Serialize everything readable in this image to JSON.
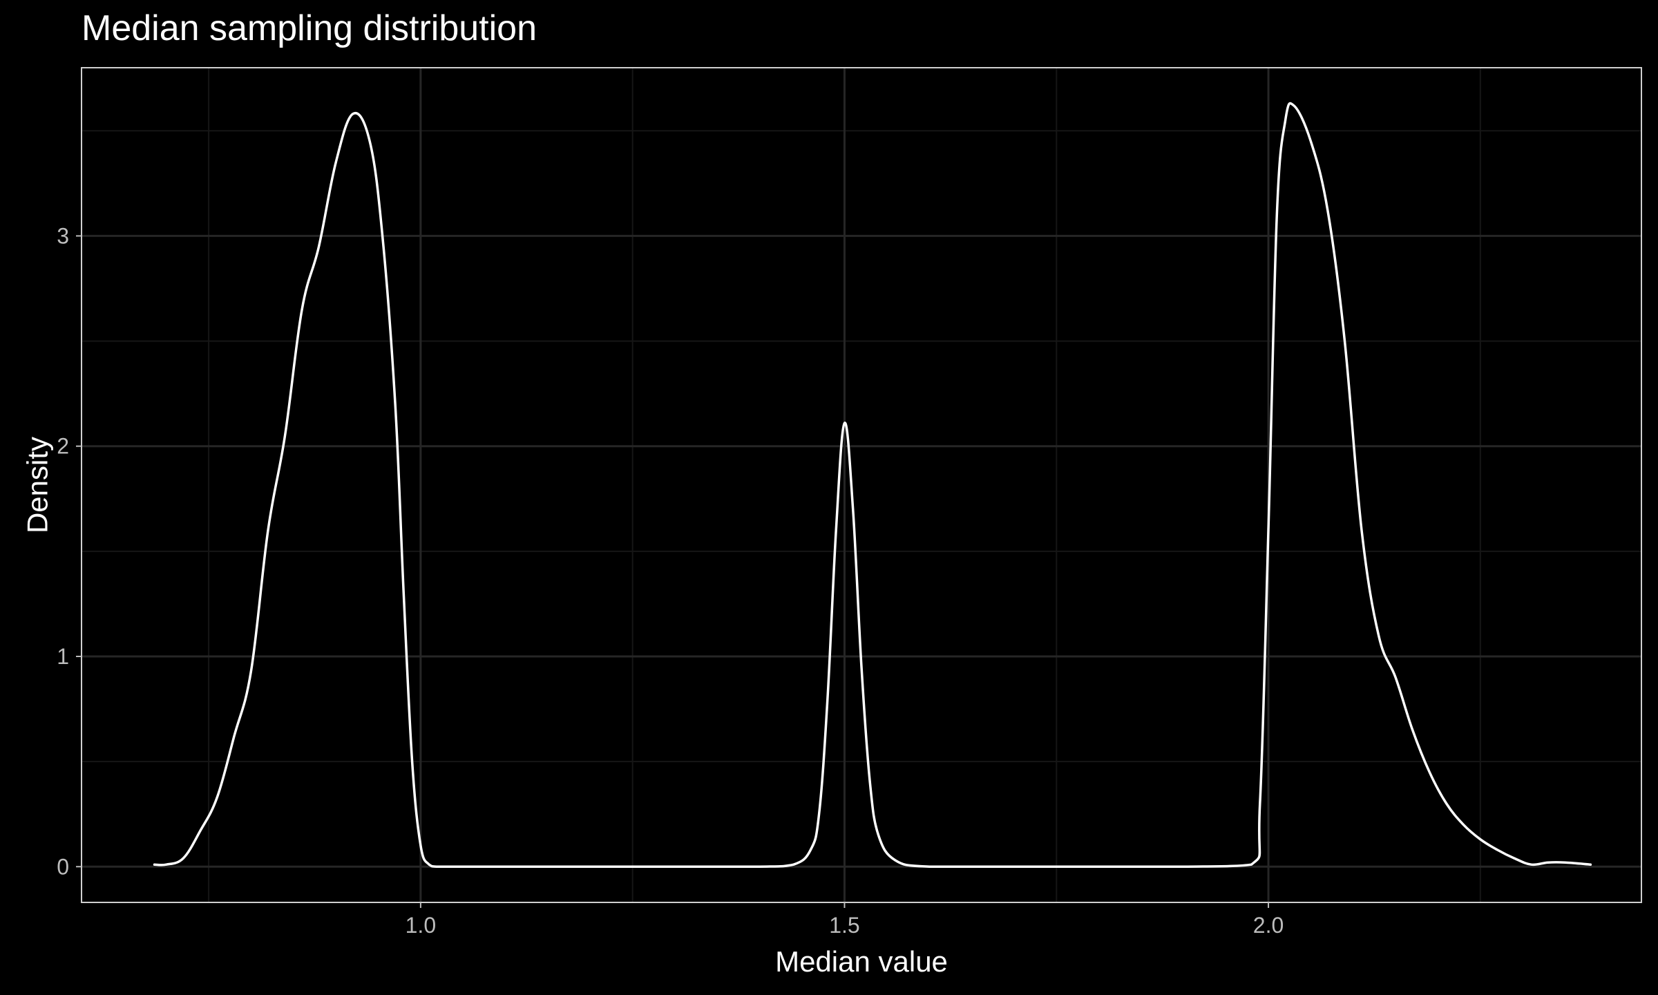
{
  "chart_data": {
    "type": "line",
    "title": "Median sampling distribution",
    "xlabel": "Median value",
    "ylabel": "Density",
    "xlim": [
      0.6,
      2.44
    ],
    "ylim": [
      -0.17,
      3.8
    ],
    "x_ticks": [
      1.0,
      1.5,
      2.0
    ],
    "x_tick_labels": [
      "1.0",
      "1.5",
      "2.0"
    ],
    "y_ticks": [
      0,
      1,
      2,
      3
    ],
    "y_tick_labels": [
      "0",
      "1",
      "2",
      "3"
    ],
    "grid": true,
    "legend": "none",
    "colors": {
      "background": "#000000",
      "line": "#ffffff",
      "grid": "#262626",
      "text": "#ffffff",
      "tick_text": "#bdbdbd"
    },
    "series": [
      {
        "x": [
          0.686,
          0.7,
          0.72,
          0.74,
          0.76,
          0.78,
          0.8,
          0.82,
          0.84,
          0.86,
          0.88,
          0.9,
          0.92,
          0.94,
          0.955,
          0.97,
          0.98,
          0.99,
          1.0,
          1.01,
          1.02,
          1.05,
          1.1,
          1.2,
          1.3,
          1.4,
          1.44,
          1.46,
          1.47,
          1.48,
          1.49,
          1.5,
          1.51,
          1.52,
          1.53,
          1.54,
          1.56,
          1.6,
          1.7,
          1.8,
          1.9,
          1.98,
          1.99,
          2.0,
          2.01,
          2.02,
          2.03,
          2.05,
          2.07,
          2.09,
          2.11,
          2.13,
          2.15,
          2.17,
          2.19,
          2.21,
          2.23,
          2.25,
          2.27,
          2.29,
          2.31,
          2.33,
          2.35,
          2.38
        ],
        "y": [
          0.01,
          0.01,
          0.04,
          0.17,
          0.33,
          0.62,
          0.93,
          1.6,
          2.05,
          2.65,
          2.95,
          3.35,
          3.58,
          3.45,
          3.0,
          2.2,
          1.3,
          0.5,
          0.1,
          0.01,
          0.0,
          0.0,
          0.0,
          0.0,
          0.0,
          0.0,
          0.01,
          0.08,
          0.25,
          0.8,
          1.6,
          2.11,
          1.7,
          0.95,
          0.4,
          0.15,
          0.03,
          0.0,
          0.0,
          0.0,
          0.0,
          0.01,
          0.3,
          1.6,
          3.1,
          3.55,
          3.62,
          3.45,
          3.12,
          2.5,
          1.6,
          1.1,
          0.9,
          0.65,
          0.45,
          0.3,
          0.2,
          0.13,
          0.08,
          0.04,
          0.01,
          0.02,
          0.02,
          0.01
        ]
      }
    ]
  }
}
